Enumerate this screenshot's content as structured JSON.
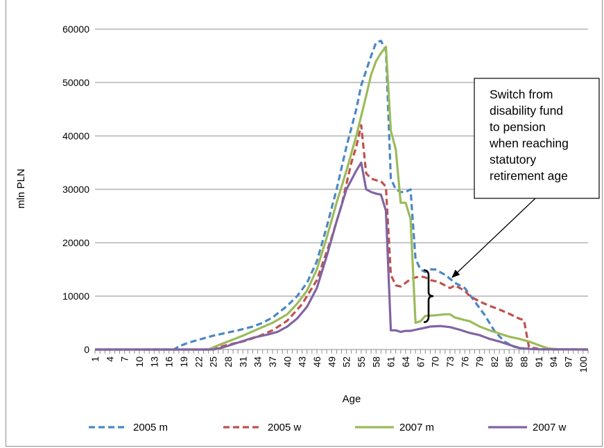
{
  "chart_data": {
    "type": "line",
    "xlabel": "Age",
    "ylabel": "mln PLN",
    "ylim": [
      0,
      60000
    ],
    "yticks": [
      0,
      10000,
      20000,
      30000,
      40000,
      50000,
      60000
    ],
    "ytick_labels": [
      "0",
      "10000",
      "20000",
      "30000",
      "40000",
      "50000",
      "60000"
    ],
    "x_range": [
      1,
      101
    ],
    "xtick_labels": [
      "1",
      "4",
      "7",
      "10",
      "13",
      "16",
      "19",
      "22",
      "25",
      "28",
      "31",
      "34",
      "37",
      "40",
      "43",
      "46",
      "49",
      "52",
      "55",
      "58",
      "61",
      "64",
      "67",
      "70",
      "73",
      "76",
      "79",
      "82",
      "85",
      "88",
      "91",
      "94",
      "97",
      "100"
    ],
    "grid": "horizontal",
    "legend_position": "bottom",
    "series": [
      {
        "name": "2005 m",
        "color": "#4a86c8",
        "dash": "dashed",
        "points": [
          [
            1,
            0
          ],
          [
            17,
            0
          ],
          [
            18,
            600
          ],
          [
            20,
            1300
          ],
          [
            25,
            2600
          ],
          [
            30,
            3600
          ],
          [
            33,
            4300
          ],
          [
            35,
            5000
          ],
          [
            37,
            6000
          ],
          [
            40,
            8200
          ],
          [
            42,
            10000
          ],
          [
            44,
            12500
          ],
          [
            46,
            16500
          ],
          [
            48,
            23000
          ],
          [
            50,
            30000
          ],
          [
            52,
            38000
          ],
          [
            54,
            45000
          ],
          [
            55,
            49500
          ],
          [
            57,
            55000
          ],
          [
            58,
            57500
          ],
          [
            59,
            57800
          ],
          [
            60,
            56000
          ],
          [
            61,
            32000
          ],
          [
            62,
            30000
          ],
          [
            63,
            29500
          ],
          [
            64,
            29500
          ],
          [
            65,
            30000
          ],
          [
            66,
            17000
          ],
          [
            67,
            15000
          ],
          [
            68,
            14500
          ],
          [
            69,
            15000
          ],
          [
            70,
            15000
          ],
          [
            71,
            14500
          ],
          [
            72,
            14000
          ],
          [
            74,
            12500
          ],
          [
            76,
            11500
          ],
          [
            78,
            9000
          ],
          [
            80,
            6500
          ],
          [
            82,
            3500
          ],
          [
            84,
            1500
          ],
          [
            86,
            500
          ],
          [
            88,
            200
          ],
          [
            90,
            100
          ],
          [
            92,
            50
          ],
          [
            101,
            0
          ]
        ]
      },
      {
        "name": "2005 w",
        "color": "#c0504d",
        "dash": "dashed",
        "points": [
          [
            1,
            0
          ],
          [
            24,
            0
          ],
          [
            26,
            400
          ],
          [
            28,
            900
          ],
          [
            31,
            1500
          ],
          [
            34,
            2400
          ],
          [
            37,
            3600
          ],
          [
            40,
            5400
          ],
          [
            43,
            8500
          ],
          [
            46,
            13000
          ],
          [
            49,
            21000
          ],
          [
            51,
            27000
          ],
          [
            53,
            35000
          ],
          [
            54,
            38000
          ],
          [
            55,
            42000
          ],
          [
            56,
            33000
          ],
          [
            57,
            32000
          ],
          [
            58,
            31700
          ],
          [
            59,
            31500
          ],
          [
            60,
            30500
          ],
          [
            61,
            14000
          ],
          [
            62,
            12000
          ],
          [
            63,
            11800
          ],
          [
            64,
            12500
          ],
          [
            65,
            13200
          ],
          [
            66,
            13500
          ],
          [
            67,
            13700
          ],
          [
            68,
            13500
          ],
          [
            69,
            13000
          ],
          [
            70,
            12800
          ],
          [
            71,
            12500
          ],
          [
            72,
            12000
          ],
          [
            73,
            11500
          ],
          [
            74,
            12000
          ],
          [
            75,
            11500
          ],
          [
            76,
            11000
          ],
          [
            77,
            10000
          ],
          [
            79,
            9000
          ],
          [
            81,
            8200
          ],
          [
            83,
            7500
          ],
          [
            85,
            6700
          ],
          [
            87,
            5800
          ],
          [
            88,
            5500
          ],
          [
            89,
            500
          ],
          [
            91,
            100
          ],
          [
            92,
            50
          ],
          [
            101,
            0
          ]
        ]
      },
      {
        "name": "2007 m",
        "color": "#9bbb59",
        "dash": "solid",
        "points": [
          [
            1,
            0
          ],
          [
            24,
            0
          ],
          [
            26,
            800
          ],
          [
            28,
            1500
          ],
          [
            31,
            2600
          ],
          [
            34,
            3800
          ],
          [
            37,
            5000
          ],
          [
            40,
            6600
          ],
          [
            42,
            8600
          ],
          [
            44,
            11000
          ],
          [
            46,
            15000
          ],
          [
            48,
            21000
          ],
          [
            50,
            27500
          ],
          [
            52,
            33500
          ],
          [
            54,
            40000
          ],
          [
            56,
            47500
          ],
          [
            57,
            51500
          ],
          [
            58,
            54000
          ],
          [
            59,
            55500
          ],
          [
            60,
            56700
          ],
          [
            61,
            41000
          ],
          [
            62,
            37500
          ],
          [
            63,
            27500
          ],
          [
            64,
            27500
          ],
          [
            65,
            24500
          ],
          [
            66,
            5000
          ],
          [
            67,
            5300
          ],
          [
            68,
            6300
          ],
          [
            70,
            6400
          ],
          [
            72,
            6600
          ],
          [
            73,
            6600
          ],
          [
            74,
            6000
          ],
          [
            76,
            5500
          ],
          [
            77,
            5300
          ],
          [
            79,
            4300
          ],
          [
            81,
            3600
          ],
          [
            83,
            3000
          ],
          [
            85,
            2400
          ],
          [
            87,
            2000
          ],
          [
            89,
            1500
          ],
          [
            91,
            800
          ],
          [
            93,
            200
          ],
          [
            95,
            50
          ],
          [
            101,
            0
          ]
        ]
      },
      {
        "name": "2007 w",
        "color": "#8064a2",
        "dash": "solid",
        "points": [
          [
            1,
            0
          ],
          [
            25,
            0
          ],
          [
            27,
            400
          ],
          [
            30,
            1300
          ],
          [
            33,
            2200
          ],
          [
            36,
            2800
          ],
          [
            38,
            3300
          ],
          [
            40,
            4300
          ],
          [
            42,
            5800
          ],
          [
            44,
            8000
          ],
          [
            46,
            11500
          ],
          [
            48,
            17500
          ],
          [
            50,
            24000
          ],
          [
            52,
            30000
          ],
          [
            54,
            33500
          ],
          [
            55,
            35000
          ],
          [
            56,
            30000
          ],
          [
            57,
            29500
          ],
          [
            58,
            29200
          ],
          [
            59,
            29000
          ],
          [
            60,
            26000
          ],
          [
            61,
            3600
          ],
          [
            62,
            3600
          ],
          [
            63,
            3300
          ],
          [
            64,
            3500
          ],
          [
            65,
            3500
          ],
          [
            66,
            3700
          ],
          [
            67,
            3900
          ],
          [
            69,
            4300
          ],
          [
            71,
            4400
          ],
          [
            73,
            4200
          ],
          [
            75,
            3700
          ],
          [
            77,
            3100
          ],
          [
            79,
            2700
          ],
          [
            81,
            2000
          ],
          [
            83,
            1500
          ],
          [
            85,
            900
          ],
          [
            87,
            300
          ],
          [
            89,
            100
          ],
          [
            91,
            50
          ],
          [
            101,
            0
          ]
        ]
      }
    ],
    "annotations": [
      {
        "text_lines": [
          "Switch from",
          "disability fund",
          "to pension",
          "when reaching",
          "statutory",
          "retirement age"
        ],
        "points_to_x": 69.5,
        "brace_from": 5000,
        "brace_to": 15000
      }
    ]
  }
}
